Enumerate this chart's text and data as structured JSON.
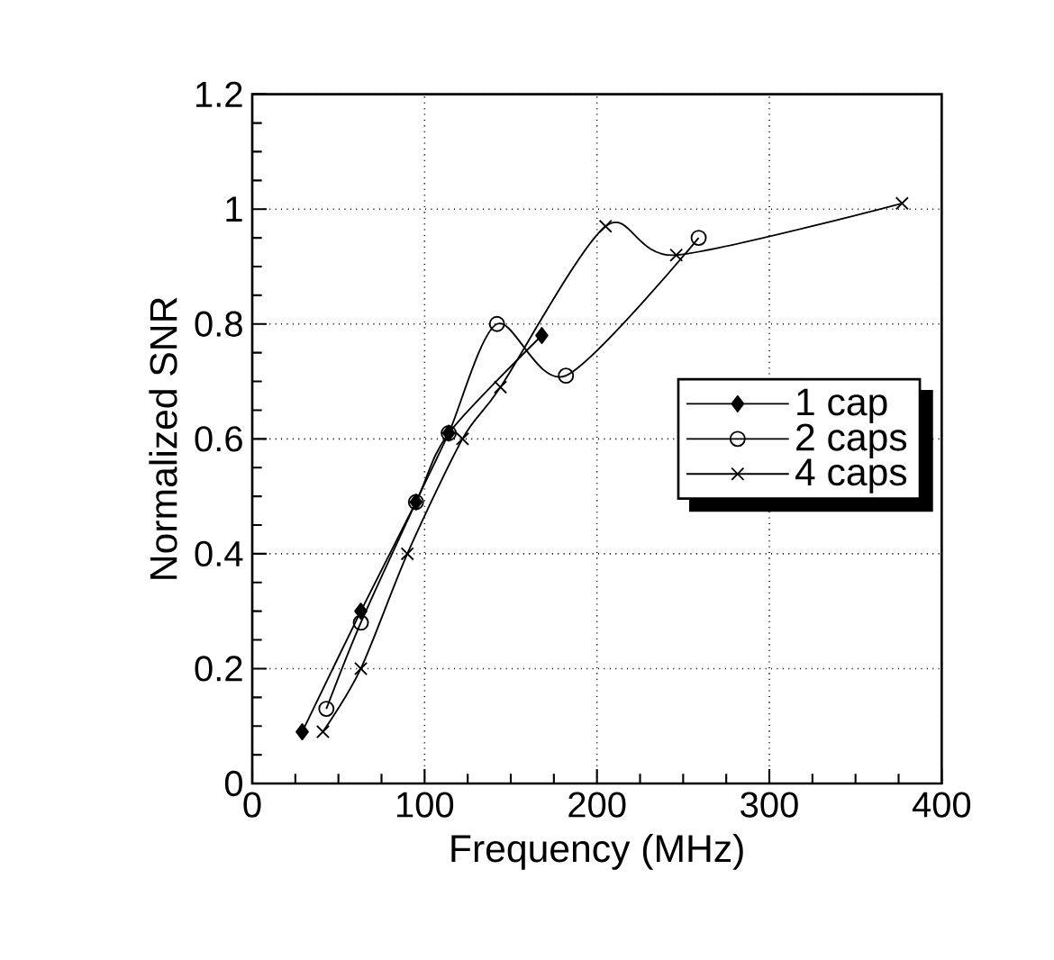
{
  "chart_data": {
    "type": "line",
    "xlabel": "Frequency (MHz)",
    "ylabel": "Normalized SNR",
    "xlim": [
      0,
      400
    ],
    "xticks": [
      0,
      100,
      200,
      300,
      400
    ],
    "ylim": [
      0,
      1.2
    ],
    "yticks": [
      0,
      0.2,
      0.4,
      0.6,
      0.8,
      1,
      1.2
    ],
    "grid": true,
    "legend": "right",
    "series": [
      {
        "name": "1 cap",
        "color": "#000000",
        "marker": "diamond",
        "x": [
          29,
          63,
          95,
          114,
          168
        ],
        "values": [
          0.09,
          0.3,
          0.49,
          0.61,
          0.78
        ]
      },
      {
        "name": "2 caps",
        "color": "#000000",
        "marker": "circle",
        "x": [
          43,
          63,
          95,
          114,
          142,
          182,
          259
        ],
        "values": [
          0.13,
          0.28,
          0.49,
          0.61,
          0.8,
          0.71,
          0.95
        ]
      },
      {
        "name": "4 caps",
        "color": "#000000",
        "marker": "cross",
        "x": [
          41,
          63,
          90,
          122,
          144,
          205,
          246,
          377
        ],
        "values": [
          0.09,
          0.2,
          0.4,
          0.6,
          0.69,
          0.97,
          0.92,
          1.01
        ]
      }
    ]
  }
}
